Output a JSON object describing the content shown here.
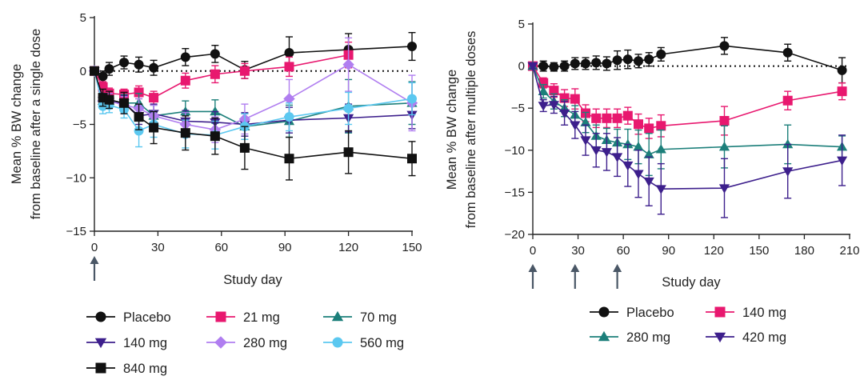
{
  "chart_data": [
    {
      "type": "line",
      "xlabel": "Study day",
      "ylabel": [
        "Mean % BW change",
        "from baseline after a single dose"
      ],
      "xlim": [
        0,
        150
      ],
      "ylim": [
        -15,
        5
      ],
      "xticks": [
        "0",
        "30",
        "60",
        "90",
        "120",
        "150"
      ],
      "yticks": [
        "5",
        "0",
        "−5",
        "−10",
        "−15"
      ],
      "xtick_values": [
        0,
        30,
        60,
        90,
        120,
        150
      ],
      "ytick_values": [
        5,
        0,
        -5,
        -10,
        -15
      ],
      "reference_line": 0,
      "dose_days": [
        0
      ],
      "legend_position": "bottom",
      "series": [
        {
          "name": "Placebo",
          "color": "#111111",
          "marker": "circle",
          "x": [
            0,
            4,
            7,
            14,
            21,
            28,
            43,
            57,
            71,
            92,
            120,
            150
          ],
          "y": [
            0,
            -0.5,
            0.2,
            0.8,
            0.6,
            0.3,
            1.3,
            1.6,
            0.1,
            1.7,
            2.0,
            2.3
          ],
          "err": [
            0.3,
            0.5,
            0.6,
            0.6,
            0.7,
            0.7,
            0.8,
            0.8,
            0.8,
            1.5,
            1.5,
            1.3
          ]
        },
        {
          "name": "21 mg",
          "color": "#e8186f",
          "marker": "square",
          "x": [
            0,
            4,
            7,
            14,
            21,
            28,
            43,
            57,
            71,
            92,
            120
          ],
          "y": [
            0,
            -1.5,
            -2.1,
            -2.2,
            -2.0,
            -2.5,
            -0.9,
            -0.3,
            0.0,
            0.4,
            1.5
          ],
          "err": [
            0.3,
            0.5,
            0.5,
            0.5,
            0.6,
            0.6,
            0.7,
            0.8,
            0.7,
            0.9,
            1.2
          ]
        },
        {
          "name": "70 mg",
          "color": "#1c7f7a",
          "marker": "triangle",
          "x": [
            0,
            4,
            7,
            14,
            21,
            28,
            43,
            57,
            71,
            92,
            120,
            150
          ],
          "y": [
            0,
            -2.8,
            -2.8,
            -3.0,
            -3.0,
            -4.2,
            -3.8,
            -3.8,
            -5.2,
            -4.7,
            -3.3,
            -3.0
          ],
          "err": [
            0.3,
            0.7,
            0.7,
            0.8,
            0.9,
            1.0,
            1.0,
            1.1,
            1.2,
            1.5,
            2.5,
            2.0
          ]
        },
        {
          "name": "140 mg",
          "color": "#3d1f8c",
          "marker": "triangle-down",
          "x": [
            0,
            4,
            7,
            14,
            21,
            28,
            43,
            57,
            71,
            92,
            120,
            150
          ],
          "y": [
            0,
            -2.8,
            -2.9,
            -3.0,
            -4.2,
            -4.0,
            -4.7,
            -4.8,
            -5.0,
            -4.6,
            -4.4,
            -4.1
          ],
          "err": [
            0.3,
            0.6,
            0.6,
            0.7,
            0.8,
            0.9,
            1.0,
            1.0,
            1.1,
            1.2,
            1.3,
            1.3
          ]
        },
        {
          "name": "280 mg",
          "color": "#b07ef0",
          "marker": "diamond",
          "x": [
            0,
            4,
            7,
            14,
            21,
            28,
            43,
            57,
            71,
            92,
            120,
            150
          ],
          "y": [
            0,
            -2.8,
            -2.8,
            -3.2,
            -3.5,
            -4.2,
            -5.0,
            -5.5,
            -4.5,
            -2.6,
            0.6,
            -3.0
          ],
          "err": [
            0.3,
            0.7,
            0.7,
            0.8,
            0.9,
            1.0,
            1.1,
            1.2,
            1.4,
            1.8,
            2.5,
            2.6
          ]
        },
        {
          "name": "560 mg",
          "color": "#5bc8f0",
          "marker": "circle",
          "x": [
            0,
            4,
            7,
            14,
            21,
            28,
            43,
            57,
            71,
            92,
            120,
            150
          ],
          "y": [
            0,
            -3.3,
            -3.2,
            -3.6,
            -5.6,
            -5.0,
            -5.9,
            -6.0,
            -5.2,
            -4.3,
            -3.5,
            -2.6
          ],
          "err": [
            0.3,
            0.7,
            0.7,
            0.8,
            1.5,
            1.2,
            1.3,
            1.3,
            1.2,
            1.3,
            1.5,
            1.5
          ]
        },
        {
          "name": "840 mg",
          "color": "#111111",
          "marker": "square",
          "x": [
            0,
            4,
            7,
            14,
            21,
            28,
            43,
            57,
            71,
            92,
            120,
            150
          ],
          "y": [
            0,
            -2.5,
            -2.7,
            -3.0,
            -4.3,
            -5.3,
            -5.8,
            -6.1,
            -7.2,
            -8.2,
            -7.6,
            -8.2
          ],
          "err": [
            0.3,
            0.8,
            0.8,
            1.0,
            1.2,
            1.5,
            1.6,
            1.7,
            2.0,
            2.0,
            2.0,
            1.6
          ]
        }
      ]
    },
    {
      "type": "line",
      "xlabel": "Study day",
      "ylabel": [
        "Mean % BW change",
        "from baseline after multiple doses"
      ],
      "xlim": [
        0,
        210
      ],
      "ylim": [
        -20,
        5
      ],
      "xticks": [
        "0",
        "30",
        "60",
        "90",
        "120",
        "150",
        "180",
        "210"
      ],
      "yticks": [
        "5",
        "0",
        "−5",
        "−10",
        "−15",
        "−20"
      ],
      "xtick_values": [
        0,
        30,
        60,
        90,
        120,
        150,
        180,
        210
      ],
      "ytick_values": [
        5,
        0,
        -5,
        -10,
        -15,
        -20
      ],
      "reference_line": 0,
      "dose_days": [
        0,
        28,
        56
      ],
      "legend_position": "bottom",
      "series": [
        {
          "name": "Placebo",
          "color": "#111111",
          "marker": "circle",
          "x": [
            0,
            7,
            14,
            21,
            28,
            35,
            42,
            49,
            56,
            63,
            70,
            77,
            85,
            127,
            169,
            205
          ],
          "y": [
            0,
            0.0,
            -0.1,
            0.0,
            0.3,
            0.3,
            0.4,
            0.3,
            0.7,
            0.8,
            0.6,
            0.8,
            1.4,
            2.4,
            1.6,
            -0.5
          ],
          "err": [
            0.3,
            0.6,
            0.5,
            0.6,
            0.7,
            0.7,
            0.8,
            0.8,
            1.1,
            1.1,
            0.8,
            0.8,
            0.8,
            1.0,
            1.0,
            1.5
          ]
        },
        {
          "name": "140 mg",
          "color": "#e8186f",
          "marker": "square",
          "x": [
            0,
            7,
            14,
            21,
            28,
            35,
            42,
            49,
            56,
            63,
            70,
            77,
            85,
            127,
            169,
            205
          ],
          "y": [
            0,
            -2.0,
            -2.9,
            -3.8,
            -3.9,
            -5.6,
            -6.2,
            -6.2,
            -6.2,
            -5.9,
            -6.9,
            -7.4,
            -7.1,
            -6.5,
            -4.1,
            -3.0
          ],
          "err": [
            0.3,
            0.6,
            0.8,
            1.0,
            1.2,
            1.0,
            1.1,
            1.1,
            1.1,
            1.0,
            1.2,
            1.2,
            1.3,
            1.7,
            1.1,
            1.0
          ]
        },
        {
          "name": "280 mg",
          "color": "#1c7f7a",
          "marker": "triangle",
          "x": [
            0,
            7,
            14,
            21,
            28,
            35,
            42,
            49,
            56,
            63,
            70,
            77,
            85,
            127,
            169,
            205
          ],
          "y": [
            0,
            -3.0,
            -4.2,
            -5.0,
            -5.8,
            -6.7,
            -8.3,
            -8.8,
            -9.1,
            -9.3,
            -9.6,
            -10.5,
            -9.9,
            -9.6,
            -9.3,
            -9.6
          ],
          "err": [
            0.3,
            0.8,
            0.9,
            1.0,
            1.1,
            1.2,
            1.3,
            1.4,
            1.6,
            1.8,
            2.0,
            2.5,
            2.3,
            2.5,
            2.3,
            1.3
          ]
        },
        {
          "name": "420 mg",
          "color": "#3d1f8c",
          "marker": "triangle-down",
          "x": [
            0,
            7,
            14,
            21,
            28,
            35,
            42,
            49,
            56,
            63,
            70,
            77,
            85,
            127,
            169,
            205
          ],
          "y": [
            0,
            -4.7,
            -4.6,
            -5.6,
            -7.0,
            -8.8,
            -10.0,
            -10.2,
            -10.8,
            -11.8,
            -12.8,
            -13.7,
            -14.6,
            -14.5,
            -12.5,
            -11.2
          ],
          "err": [
            0.3,
            0.7,
            1.0,
            1.4,
            1.6,
            1.8,
            2.0,
            2.2,
            2.3,
            2.5,
            2.8,
            2.9,
            3.0,
            3.5,
            3.2,
            3.0
          ]
        }
      ]
    }
  ]
}
